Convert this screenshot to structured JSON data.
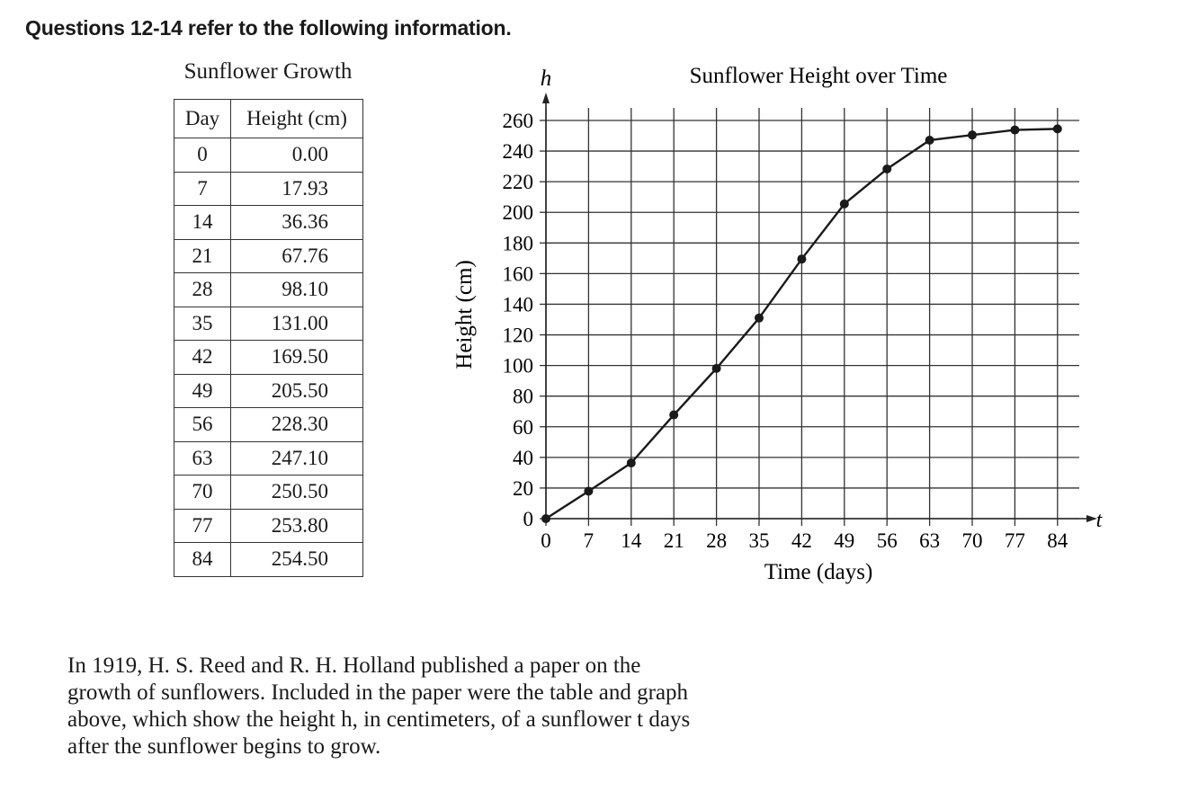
{
  "heading": "Questions 12-14 refer to the following information.",
  "table": {
    "title": "Sunflower Growth",
    "headers": [
      "Day",
      "Height (cm)"
    ],
    "rows": [
      [
        "0",
        "0.00"
      ],
      [
        "7",
        "17.93"
      ],
      [
        "14",
        "36.36"
      ],
      [
        "21",
        "67.76"
      ],
      [
        "28",
        "98.10"
      ],
      [
        "35",
        "131.00"
      ],
      [
        "42",
        "169.50"
      ],
      [
        "49",
        "205.50"
      ],
      [
        "56",
        "228.30"
      ],
      [
        "63",
        "247.10"
      ],
      [
        "70",
        "250.50"
      ],
      [
        "77",
        "253.80"
      ],
      [
        "84",
        "254.50"
      ]
    ]
  },
  "chart_data": {
    "type": "line",
    "title": "Sunflower Height over Time",
    "xlabel": "Time (days)",
    "ylabel": "Height (cm)",
    "x_axis_var": "t",
    "y_axis_var": "h",
    "x": [
      0,
      7,
      14,
      21,
      28,
      35,
      42,
      49,
      56,
      63,
      70,
      77,
      84
    ],
    "series": [
      {
        "values": [
          0.0,
          17.93,
          36.36,
          67.76,
          98.1,
          131.0,
          169.5,
          205.5,
          228.3,
          247.1,
          250.5,
          253.8,
          254.5
        ]
      }
    ],
    "xticks": [
      "0",
      "7",
      "14",
      "21",
      "28",
      "35",
      "42",
      "49",
      "56",
      "63",
      "70",
      "77",
      "84"
    ],
    "yticks": [
      "0",
      "20",
      "40",
      "60",
      "80",
      "100",
      "120",
      "140",
      "160",
      "180",
      "200",
      "220",
      "240",
      "260"
    ],
    "xlim": [
      0,
      84
    ],
    "ylim": [
      0,
      260
    ],
    "grid": true,
    "markers": true
  },
  "passage": {
    "lines": [
      "In 1919, H.  S.  Reed and R.  H.  Holland published a paper on the",
      "growth of sunflowers.  Included in the paper were the table and graph",
      "above, which show the height  h, in centimeters, of a sunflower  t  days",
      "after the sunflower begins to grow."
    ]
  }
}
